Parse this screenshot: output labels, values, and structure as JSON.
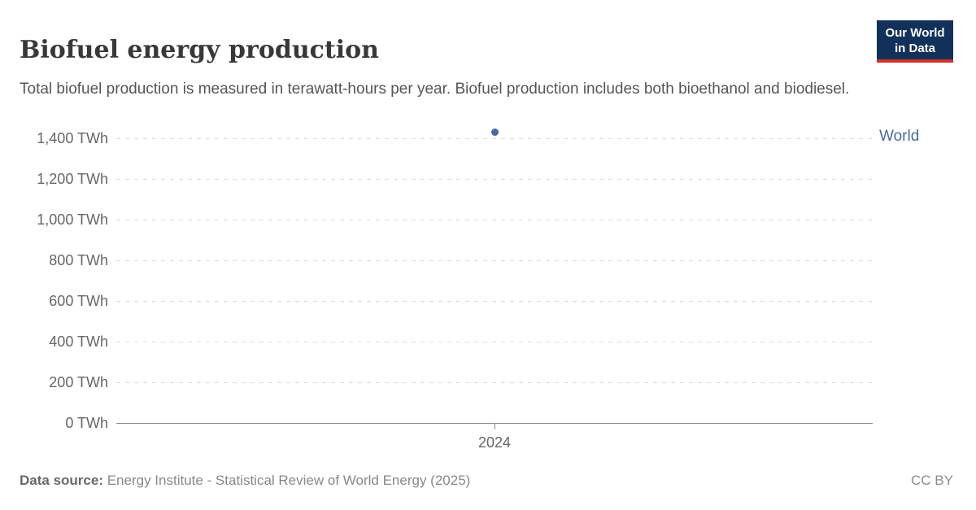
{
  "header": {
    "title": "Biofuel energy production",
    "subtitle": "Total biofuel production is measured in terawatt-hours per year. Biofuel production includes both bioethanol and biodiesel.",
    "logo": {
      "line1": "Our World",
      "line2": "in Data"
    }
  },
  "chart_data": {
    "type": "scatter",
    "title": "Biofuel energy production",
    "x": [
      2024
    ],
    "x_tick_labels": [
      "2024"
    ],
    "series": [
      {
        "name": "World",
        "color": "#4c6a9c",
        "values": [
          1430
        ]
      }
    ],
    "ylabel": "TWh",
    "ylim": [
      0,
      1400
    ],
    "y_ticks": [
      {
        "value": 0,
        "label": "0 TWh"
      },
      {
        "value": 200,
        "label": "200 TWh"
      },
      {
        "value": 400,
        "label": "400 TWh"
      },
      {
        "value": 600,
        "label": "600 TWh"
      },
      {
        "value": 800,
        "label": "800 TWh"
      },
      {
        "value": 1000,
        "label": "1,000 TWh"
      },
      {
        "value": 1200,
        "label": "1,200 TWh"
      },
      {
        "value": 1400,
        "label": "1,400 TWh"
      }
    ],
    "grid": "horizontal-dashed",
    "legend_position": "right-of-plot"
  },
  "footer": {
    "source_label": "Data source:",
    "source_text": " Energy Institute - Statistical Review of World Energy (2025)",
    "license": "CC BY"
  },
  "colors": {
    "accent_blue": "#4c6a9c",
    "logo_navy": "#12315a",
    "logo_red": "#d13328",
    "axis_gray": "#8c8c8c",
    "grid_gray": "#dcdcdc"
  }
}
